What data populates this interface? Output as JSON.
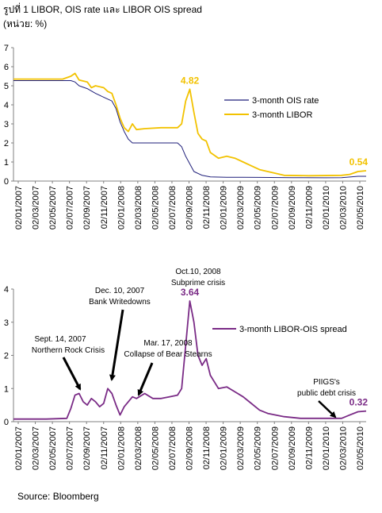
{
  "title": "รูปที่ 1 LIBOR, OIS rate และ LIBOR OIS spread",
  "unit_label": "(หน่วย: %)",
  "source": "Source: Bloomberg",
  "colors": {
    "ois": "#1f1f7a",
    "libor": "#f2c200",
    "spread": "#7a2b86",
    "axis": "#808080"
  },
  "chart_data": [
    {
      "type": "line",
      "ylim": [
        0,
        7
      ],
      "yticks": [
        "0",
        "1",
        "2",
        "3",
        "4",
        "5",
        "6",
        "7"
      ],
      "xlim": [
        0,
        43
      ],
      "xticks": [
        "02/01/2007",
        "02/03/2007",
        "02/05/2007",
        "02/07/2007",
        "02/09/2007",
        "02/11/2007",
        "02/01/2008",
        "02/03/2008",
        "02/05/2008",
        "02/07/2008",
        "02/09/2008",
        "02/11/2008",
        "02/01/2009",
        "02/03/2009",
        "02/05/2009",
        "02/07/2009",
        "02/09/2009",
        "02/11/2009",
        "02/01/2010",
        "02/03/2010",
        "02/05/2010"
      ],
      "grid": false,
      "legend_position": "right",
      "series": [
        {
          "name": "3-month OIS rate",
          "color_key": "ois",
          "points": [
            [
              0,
              5.27
            ],
            [
              2,
              5.27
            ],
            [
              4,
              5.27
            ],
            [
              6,
              5.27
            ],
            [
              7,
              5.27
            ],
            [
              7.5,
              5.2
            ],
            [
              8,
              5.0
            ],
            [
              9,
              4.85
            ],
            [
              10,
              4.6
            ],
            [
              11,
              4.4
            ],
            [
              12,
              4.2
            ],
            [
              12.5,
              3.8
            ],
            [
              13,
              3.1
            ],
            [
              13.5,
              2.6
            ],
            [
              14,
              2.2
            ],
            [
              14.5,
              2.0
            ],
            [
              15,
              2.0
            ],
            [
              17,
              2.0
            ],
            [
              19,
              2.0
            ],
            [
              20,
              2.0
            ],
            [
              20.5,
              1.8
            ],
            [
              21,
              1.3
            ],
            [
              21.5,
              0.9
            ],
            [
              22,
              0.5
            ],
            [
              23,
              0.3
            ],
            [
              24,
              0.22
            ],
            [
              26,
              0.2
            ],
            [
              28,
              0.2
            ],
            [
              30,
              0.19
            ],
            [
              34,
              0.18
            ],
            [
              38,
              0.17
            ],
            [
              40,
              0.18
            ],
            [
              42,
              0.25
            ],
            [
              43,
              0.25
            ]
          ]
        },
        {
          "name": "3-month LIBOR",
          "color_key": "libor",
          "points": [
            [
              0,
              5.35
            ],
            [
              2,
              5.35
            ],
            [
              4,
              5.35
            ],
            [
              6,
              5.35
            ],
            [
              7,
              5.5
            ],
            [
              7.5,
              5.65
            ],
            [
              8,
              5.3
            ],
            [
              9,
              5.2
            ],
            [
              9.5,
              4.9
            ],
            [
              10,
              5.0
            ],
            [
              11,
              4.9
            ],
            [
              11.5,
              4.7
            ],
            [
              12,
              4.6
            ],
            [
              12.5,
              4.0
            ],
            [
              13,
              3.3
            ],
            [
              13.5,
              2.8
            ],
            [
              14,
              2.6
            ],
            [
              14.5,
              3.0
            ],
            [
              15,
              2.7
            ],
            [
              16,
              2.75
            ],
            [
              18,
              2.8
            ],
            [
              20,
              2.8
            ],
            [
              20.5,
              3.0
            ],
            [
              21,
              4.2
            ],
            [
              21.5,
              4.82
            ],
            [
              22,
              3.6
            ],
            [
              22.5,
              2.5
            ],
            [
              23,
              2.2
            ],
            [
              23.5,
              2.1
            ],
            [
              24,
              1.5
            ],
            [
              25,
              1.2
            ],
            [
              26,
              1.3
            ],
            [
              27,
              1.2
            ],
            [
              28,
              1.0
            ],
            [
              29,
              0.8
            ],
            [
              30,
              0.6
            ],
            [
              31,
              0.5
            ],
            [
              32,
              0.4
            ],
            [
              33,
              0.3
            ],
            [
              36,
              0.28
            ],
            [
              40,
              0.3
            ],
            [
              41,
              0.35
            ],
            [
              42,
              0.5
            ],
            [
              43,
              0.54
            ]
          ]
        }
      ],
      "annotations": [
        {
          "text": "4.82",
          "x": 21.5,
          "y": 4.82,
          "color_key": "libor"
        },
        {
          "text": "0.54",
          "x": 43,
          "y": 0.54,
          "color_key": "libor"
        }
      ]
    },
    {
      "type": "line",
      "ylim": [
        0,
        4
      ],
      "yticks": [
        "0",
        "1",
        "2",
        "3",
        "4"
      ],
      "xlim": [
        0,
        43
      ],
      "xticks": [
        "02/01/2007",
        "02/03/2007",
        "02/05/2007",
        "02/07/2007",
        "02/09/2007",
        "02/11/2007",
        "02/01/2008",
        "02/03/2008",
        "02/05/2008",
        "02/07/2008",
        "02/09/2008",
        "02/11/2008",
        "02/01/2009",
        "02/03/2009",
        "02/05/2009",
        "02/07/2009",
        "02/09/2009",
        "02/11/2009",
        "02/01/2010",
        "02/03/2010",
        "02/05/2010"
      ],
      "grid": false,
      "legend_position": "right",
      "series": [
        {
          "name": "3-month LIBOR-OIS spread",
          "color_key": "spread",
          "points": [
            [
              0,
              0.08
            ],
            [
              4,
              0.08
            ],
            [
              6.5,
              0.1
            ],
            [
              7,
              0.4
            ],
            [
              7.5,
              0.8
            ],
            [
              8,
              0.85
            ],
            [
              8.5,
              0.6
            ],
            [
              9,
              0.5
            ],
            [
              9.5,
              0.7
            ],
            [
              10,
              0.6
            ],
            [
              10.5,
              0.45
            ],
            [
              11,
              0.55
            ],
            [
              11.5,
              1.0
            ],
            [
              12,
              0.85
            ],
            [
              12.5,
              0.5
            ],
            [
              13,
              0.2
            ],
            [
              13.5,
              0.45
            ],
            [
              14,
              0.6
            ],
            [
              14.5,
              0.75
            ],
            [
              15,
              0.7
            ],
            [
              16,
              0.85
            ],
            [
              17,
              0.7
            ],
            [
              18,
              0.7
            ],
            [
              19,
              0.75
            ],
            [
              20,
              0.8
            ],
            [
              20.5,
              1.0
            ],
            [
              21,
              2.3
            ],
            [
              21.5,
              3.64
            ],
            [
              22,
              3.0
            ],
            [
              22.5,
              2.0
            ],
            [
              23,
              1.7
            ],
            [
              23.5,
              1.9
            ],
            [
              24,
              1.4
            ],
            [
              25,
              1.0
            ],
            [
              26,
              1.05
            ],
            [
              27,
              0.9
            ],
            [
              28,
              0.75
            ],
            [
              29,
              0.55
            ],
            [
              30,
              0.35
            ],
            [
              31,
              0.25
            ],
            [
              33,
              0.15
            ],
            [
              35,
              0.1
            ],
            [
              38,
              0.1
            ],
            [
              40,
              0.1
            ],
            [
              41,
              0.2
            ],
            [
              42,
              0.3
            ],
            [
              43,
              0.32
            ]
          ]
        }
      ],
      "annotations": [
        {
          "text": "3.64",
          "x": 21.5,
          "y": 3.64,
          "color_key": "spread"
        },
        {
          "text": "0.32",
          "x": 43,
          "y": 0.32,
          "color_key": "spread"
        }
      ],
      "callouts": [
        {
          "lines": [
            "Sept. 14, 2007",
            "Northern Rock Crisis"
          ],
          "target": [
            8,
            0.85
          ]
        },
        {
          "lines": [
            "Dec. 10, 2007",
            "Bank Writedowns"
          ],
          "target": [
            11.5,
            1.0
          ]
        },
        {
          "lines": [
            "Mar. 17, 2008",
            "Collapse of Bear  Stearns"
          ],
          "target": [
            14.5,
            0.75
          ]
        },
        {
          "lines": [
            "Oct.10, 2008",
            "Subprime crisis"
          ],
          "target": null
        },
        {
          "lines": [
            "PIIGS's",
            "public debt crisis"
          ],
          "target": [
            40,
            0.1
          ]
        }
      ]
    }
  ]
}
